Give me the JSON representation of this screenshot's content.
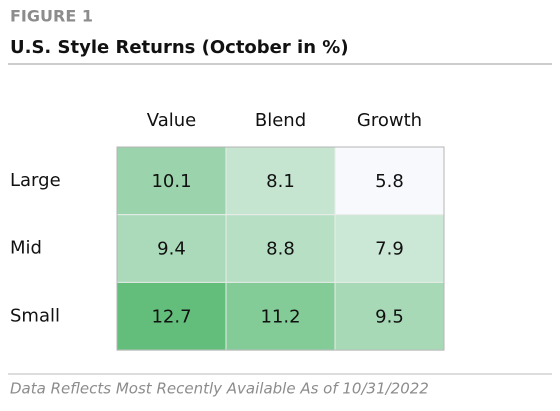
{
  "chart_data": {
    "type": "heatmap",
    "label": "FIGURE 1",
    "title": "U.S. Style Returns (October in %)",
    "columns": [
      "Value",
      "Blend",
      "Growth"
    ],
    "rows": [
      "Large",
      "Mid",
      "Small"
    ],
    "values": [
      [
        10.1,
        8.1,
        5.8
      ],
      [
        9.4,
        8.8,
        7.9
      ],
      [
        12.7,
        11.2,
        9.5
      ]
    ],
    "colorscale": [
      "#f8f9fc",
      "#63be7b"
    ],
    "footnote": "Data Reflects Most Recently Available As of 10/31/2022"
  }
}
